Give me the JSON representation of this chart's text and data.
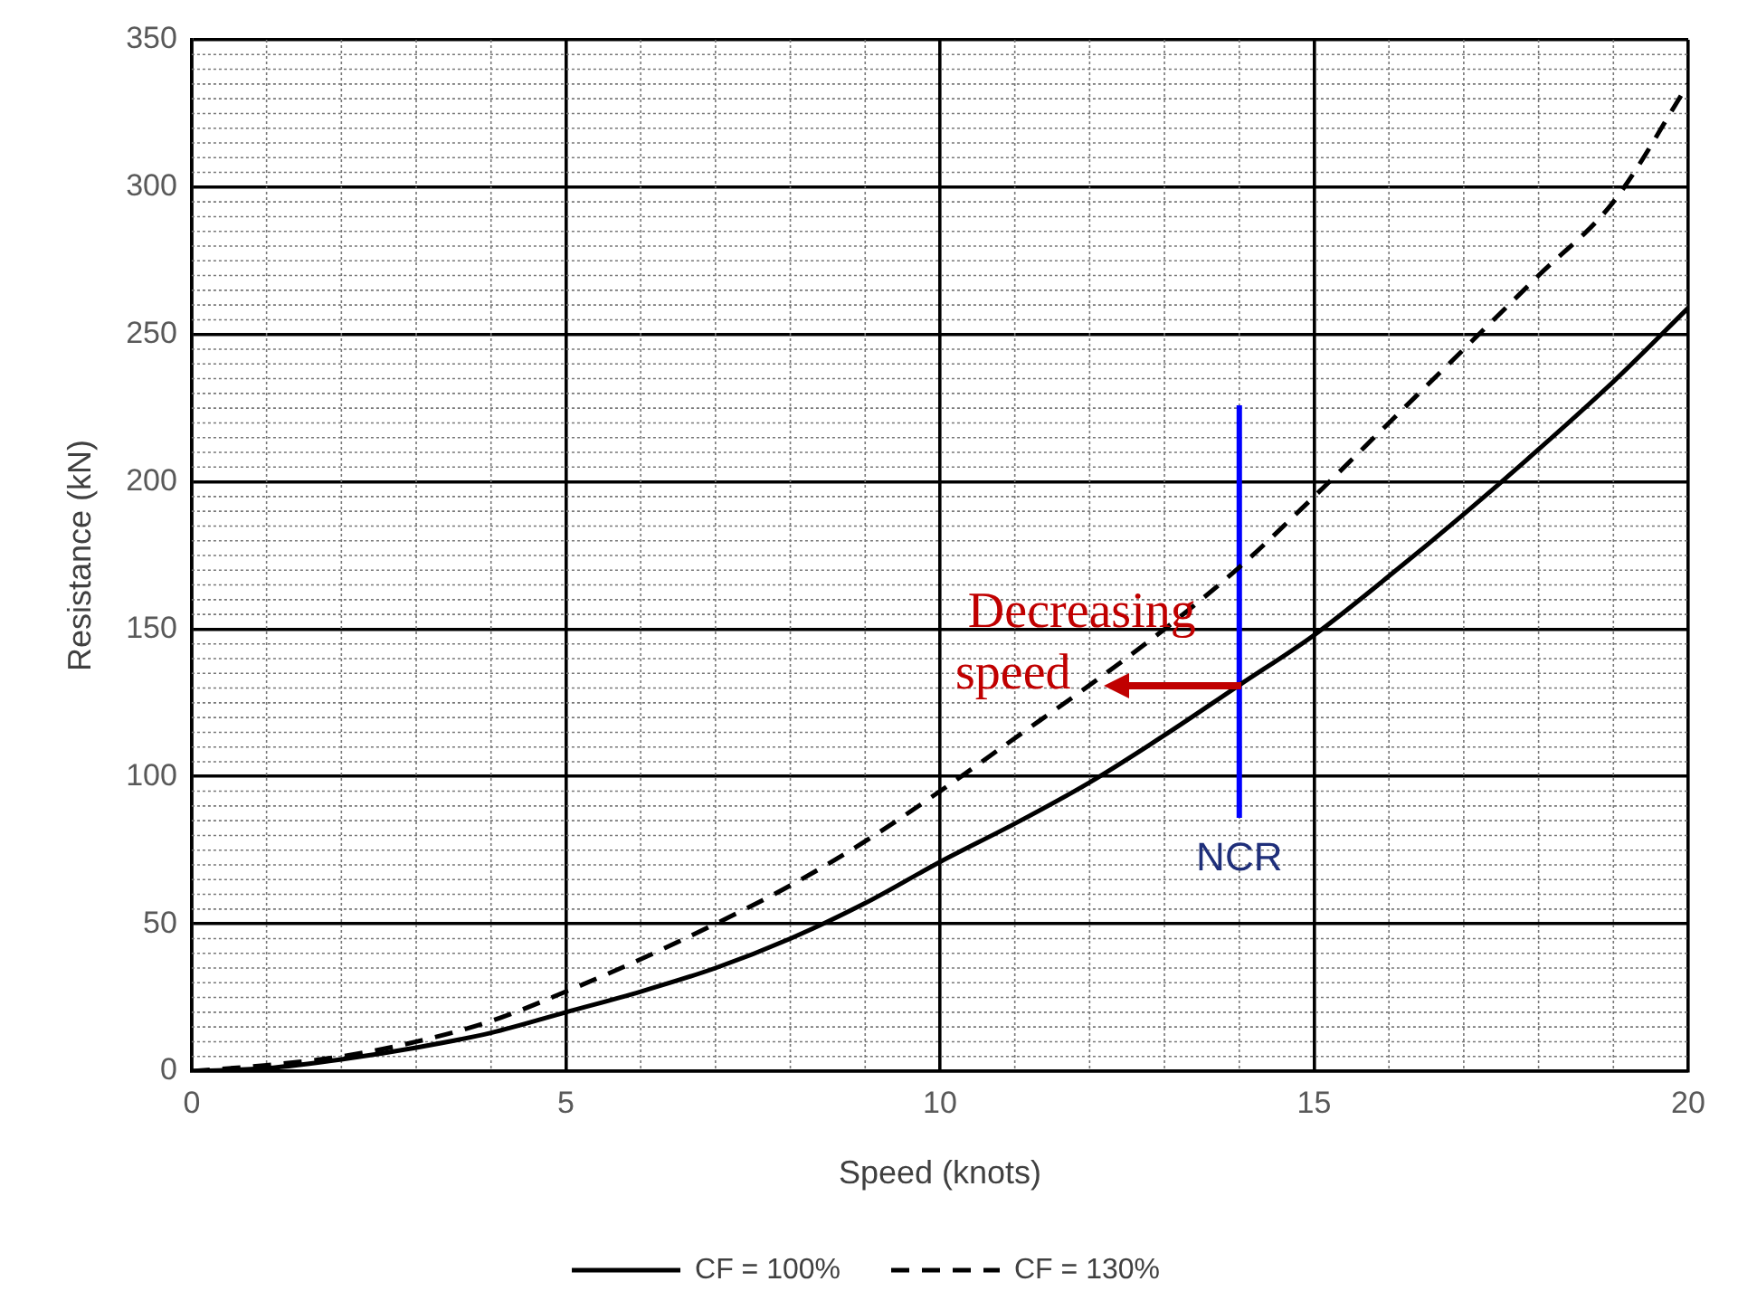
{
  "chart_data": {
    "type": "line",
    "xlabel": "Speed (knots)",
    "ylabel": "Resistance (kN)",
    "x": [
      0,
      1,
      2,
      3,
      4,
      5,
      6,
      7,
      8,
      9,
      10,
      11,
      12,
      13,
      14,
      15,
      16,
      17,
      18,
      19,
      20
    ],
    "xlim": [
      0,
      20
    ],
    "xticks": [
      0,
      5,
      10,
      15,
      20
    ],
    "ylim": [
      0,
      350
    ],
    "yticks": [
      0,
      50,
      100,
      150,
      200,
      250,
      300,
      350
    ],
    "grid": true,
    "legend": "bottom",
    "marker": "none",
    "series": [
      {
        "name": "CF = 100%",
        "color": "#000000",
        "line_style": "solid",
        "values": [
          0,
          1,
          4,
          8,
          13,
          20,
          27,
          35,
          45,
          57,
          71,
          84,
          98,
          114,
          131,
          148,
          168,
          189,
          211,
          234,
          259
        ]
      },
      {
        "name": "CF = 130%",
        "color": "#000000",
        "line_style": "dashed",
        "values": [
          0,
          2,
          5,
          10,
          17,
          27,
          38,
          50,
          63,
          78,
          95,
          113,
          131,
          150,
          171,
          195,
          220,
          245,
          270,
          295,
          335
        ]
      },
      {
        "name": "NCR",
        "color": "#0000ff",
        "line_style": "solid",
        "x": [
          14,
          14
        ],
        "values": [
          86,
          226
        ]
      }
    ],
    "annotations": [
      {
        "text": "Decreasing speed",
        "x": 14,
        "y": 131
      }
    ]
  }
}
